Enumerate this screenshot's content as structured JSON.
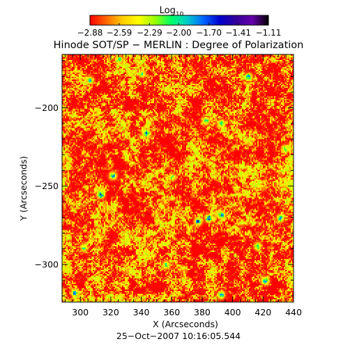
{
  "chart_data": {
    "type": "heatmap",
    "title": "Hinode SOT/SP − MERLIN : Degree of Polarization",
    "xlabel": "X (Arcseconds)",
    "ylabel": "Y (Arcseconds)",
    "footer": "25−Oct−2007 10:16:05.544",
    "xlim": [
      288,
      440
    ],
    "ylim": [
      -324,
      -166
    ],
    "x_ticks": [
      {
        "value": 300,
        "label": "300"
      },
      {
        "value": 320,
        "label": "320"
      },
      {
        "value": 340,
        "label": "340"
      },
      {
        "value": 360,
        "label": "360"
      },
      {
        "value": 380,
        "label": "380"
      },
      {
        "value": 400,
        "label": "400"
      },
      {
        "value": 420,
        "label": "420"
      },
      {
        "value": 440,
        "label": "440"
      }
    ],
    "y_ticks": [
      {
        "value": -200,
        "label": "−200"
      },
      {
        "value": -250,
        "label": "−250"
      },
      {
        "value": -300,
        "label": "−300"
      }
    ],
    "colorbar": {
      "title_main": "Log",
      "title_sub": "10",
      "range": [
        -2.88,
        -1.11
      ],
      "colors": [
        "#ff0000",
        "#ff6600",
        "#ffcc00",
        "#ffff00",
        "#99ff00",
        "#00ff66",
        "#00cccc",
        "#0066ff",
        "#0000cc",
        "#330099",
        "#6600aa",
        "#000000"
      ],
      "tick_values": [
        -2.88,
        -2.59,
        -2.29,
        -2.0,
        -1.7,
        -1.41,
        -1.11
      ],
      "tick_labels": [
        "−2.88",
        "−2.59",
        "−2.29",
        "−2.00",
        "−1.70",
        "−1.41",
        "−1.11"
      ]
    },
    "hotspots": [
      {
        "x": 384,
        "y": -270,
        "value": -1.55
      },
      {
        "x": 392,
        "y": -268,
        "value": -1.6
      },
      {
        "x": 377,
        "y": -272,
        "value": -1.6
      },
      {
        "x": 313,
        "y": -255,
        "value": -1.6
      },
      {
        "x": 321,
        "y": -243,
        "value": -1.75
      },
      {
        "x": 343,
        "y": -216,
        "value": -1.7
      },
      {
        "x": 382,
        "y": -208,
        "value": -1.75
      },
      {
        "x": 392,
        "y": -210,
        "value": -1.8
      },
      {
        "x": 410,
        "y": -180,
        "value": -1.7
      },
      {
        "x": 306,
        "y": -182,
        "value": -1.9
      },
      {
        "x": 340,
        "y": -178,
        "value": -2.0
      },
      {
        "x": 325,
        "y": -169,
        "value": -1.85
      },
      {
        "x": 431,
        "y": -270,
        "value": -1.8
      },
      {
        "x": 416,
        "y": -288,
        "value": -1.9
      },
      {
        "x": 421,
        "y": -310,
        "value": -1.65
      },
      {
        "x": 296,
        "y": -318,
        "value": -1.7
      },
      {
        "x": 392,
        "y": -319,
        "value": -1.7
      },
      {
        "x": 356,
        "y": -300,
        "value": -1.95
      },
      {
        "x": 360,
        "y": -244,
        "value": -2.05
      },
      {
        "x": 434,
        "y": -226,
        "value": -1.9
      },
      {
        "x": 302,
        "y": -289,
        "value": -2.0
      }
    ]
  }
}
